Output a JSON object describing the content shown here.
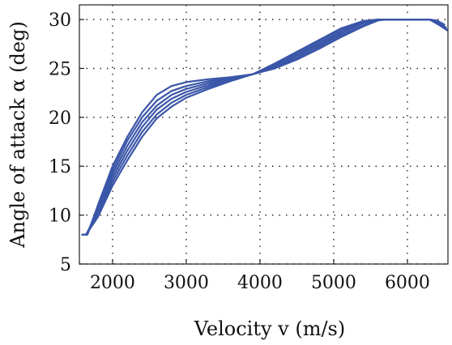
{
  "chart_data": {
    "type": "line",
    "title": "",
    "xlabel": "Velocity v (m/s)",
    "ylabel": "Angle of attack α (deg)",
    "xlim": [
      1550,
      6550
    ],
    "ylim": [
      5,
      31.5
    ],
    "xticks": [
      2000,
      3000,
      4000,
      5000,
      6000
    ],
    "yticks": [
      5,
      10,
      15,
      20,
      25,
      30
    ],
    "grid": true,
    "line_color": "#3a56a8",
    "series": [
      {
        "x": [
          1590,
          1660,
          1800,
          2000,
          2200,
          2400,
          2600,
          2800,
          3000,
          3300,
          3600,
          3900,
          4200,
          4500,
          4800,
          5100,
          5400,
          5600,
          5700,
          6300,
          6400,
          6500
        ],
        "y": [
          8,
          8,
          11,
          15,
          18,
          20.5,
          22.3,
          23.2,
          23.6,
          23.9,
          24.1,
          24.4,
          25.0,
          25.9,
          27.0,
          28.2,
          29.3,
          29.9,
          30,
          30,
          29.9,
          29.5
        ]
      },
      {
        "x": [
          1590,
          1650,
          1800,
          2000,
          2200,
          2400,
          2600,
          2800,
          3000,
          3300,
          3600,
          3900,
          4200,
          4500,
          4800,
          5100,
          5400,
          5600,
          5720,
          6300,
          6400,
          6500
        ],
        "y": [
          8,
          8,
          10.8,
          14.6,
          17.6,
          20.0,
          21.7,
          22.7,
          23.2,
          23.7,
          24.0,
          24.4,
          25.1,
          26.1,
          27.2,
          28.4,
          29.4,
          29.95,
          30,
          30,
          29.8,
          29.3
        ]
      },
      {
        "x": [
          1590,
          1650,
          1800,
          2000,
          2200,
          2400,
          2600,
          2800,
          3000,
          3300,
          3600,
          3900,
          4200,
          4500,
          4800,
          5100,
          5400,
          5600,
          5720,
          6300,
          6420,
          6520
        ],
        "y": [
          8,
          8,
          10.6,
          14.2,
          17.1,
          19.5,
          21.2,
          22.3,
          22.9,
          23.5,
          24.0,
          24.4,
          25.2,
          26.3,
          27.4,
          28.6,
          29.6,
          30,
          30,
          30,
          29.7,
          29.2
        ]
      },
      {
        "x": [
          1590,
          1640,
          1800,
          2000,
          2200,
          2400,
          2600,
          2800,
          3000,
          3300,
          3600,
          3900,
          4200,
          4500,
          4800,
          5100,
          5400,
          5600,
          5740,
          6300,
          6420,
          6520
        ],
        "y": [
          8,
          8,
          10.3,
          13.8,
          16.6,
          19.0,
          20.8,
          21.9,
          22.6,
          23.3,
          23.9,
          24.4,
          25.3,
          26.4,
          27.6,
          28.8,
          29.7,
          30,
          30,
          30,
          29.6,
          29.1
        ]
      },
      {
        "x": [
          1590,
          1640,
          1800,
          2000,
          2200,
          2400,
          2600,
          2800,
          3000,
          3300,
          3600,
          3900,
          4200,
          4500,
          4800,
          5100,
          5400,
          5600,
          5750,
          6300,
          6430,
          6530
        ],
        "y": [
          8,
          8,
          10.0,
          13.4,
          16.1,
          18.5,
          20.3,
          21.5,
          22.3,
          23.1,
          23.8,
          24.4,
          25.4,
          26.6,
          27.8,
          29.0,
          29.8,
          30,
          30,
          30,
          29.5,
          29.0
        ]
      },
      {
        "x": [
          1590,
          1640,
          1800,
          2000,
          2200,
          2400,
          2600,
          2800,
          3000,
          3300,
          3600,
          3900,
          4200,
          4500,
          4800,
          5100,
          5400,
          5600,
          5760,
          6300,
          6440,
          6540
        ],
        "y": [
          8,
          8,
          9.8,
          13.0,
          15.6,
          18.0,
          19.9,
          21.1,
          22.0,
          22.9,
          23.7,
          24.4,
          25.5,
          26.7,
          27.9,
          29.1,
          29.85,
          30,
          30,
          30,
          29.4,
          28.9
        ]
      }
    ]
  }
}
